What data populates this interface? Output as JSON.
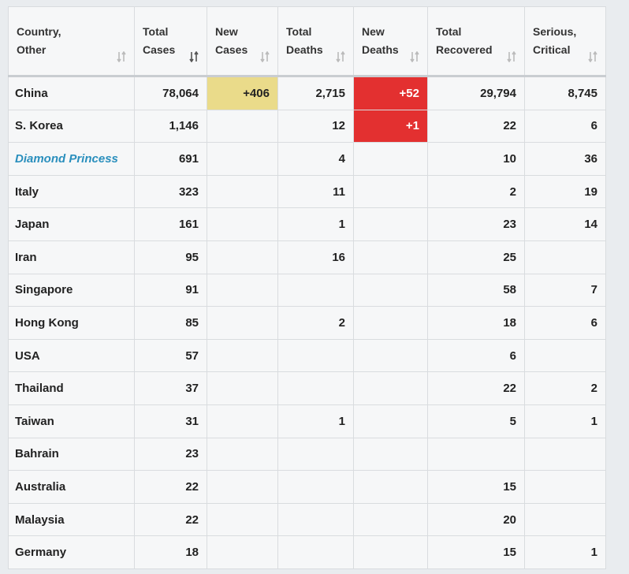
{
  "table": {
    "headers": [
      [
        "Country,",
        "Other"
      ],
      [
        "Total",
        "Cases"
      ],
      [
        "New",
        "Cases"
      ],
      [
        "Total",
        "Deaths"
      ],
      [
        "New",
        "Deaths"
      ],
      [
        "Total",
        "Recovered"
      ],
      [
        "Serious,",
        "Critical"
      ]
    ],
    "rows": [
      [
        "China",
        "78,064",
        "+406",
        "2,715",
        "+52",
        "29,794",
        "8,745"
      ],
      [
        "S. Korea",
        "1,146",
        null,
        "12",
        "+1",
        "22",
        "6"
      ],
      [
        "Diamond Princess",
        "691",
        null,
        "4",
        null,
        "10",
        "36"
      ],
      [
        "Italy",
        "323",
        null,
        "11",
        null,
        "2",
        "19"
      ],
      [
        "Japan",
        "161",
        null,
        "1",
        null,
        "23",
        "14"
      ],
      [
        "Iran",
        "95",
        null,
        "16",
        null,
        "25",
        null
      ],
      [
        "Singapore",
        "91",
        null,
        null,
        null,
        "58",
        "7"
      ],
      [
        "Hong Kong",
        "85",
        null,
        "2",
        null,
        "18",
        "6"
      ],
      [
        "USA",
        "57",
        null,
        null,
        null,
        "6",
        null
      ],
      [
        "Thailand",
        "37",
        null,
        null,
        null,
        "22",
        "2"
      ],
      [
        "Taiwan",
        "31",
        null,
        "1",
        null,
        "5",
        "1"
      ],
      [
        "Bahrain",
        "23",
        null,
        null,
        null,
        null,
        null
      ],
      [
        "Australia",
        "22",
        null,
        null,
        null,
        "15",
        null
      ],
      [
        "Malaysia",
        "22",
        null,
        null,
        null,
        "20",
        null
      ],
      [
        "Germany",
        "18",
        null,
        null,
        null,
        "15",
        "1"
      ]
    ]
  }
}
